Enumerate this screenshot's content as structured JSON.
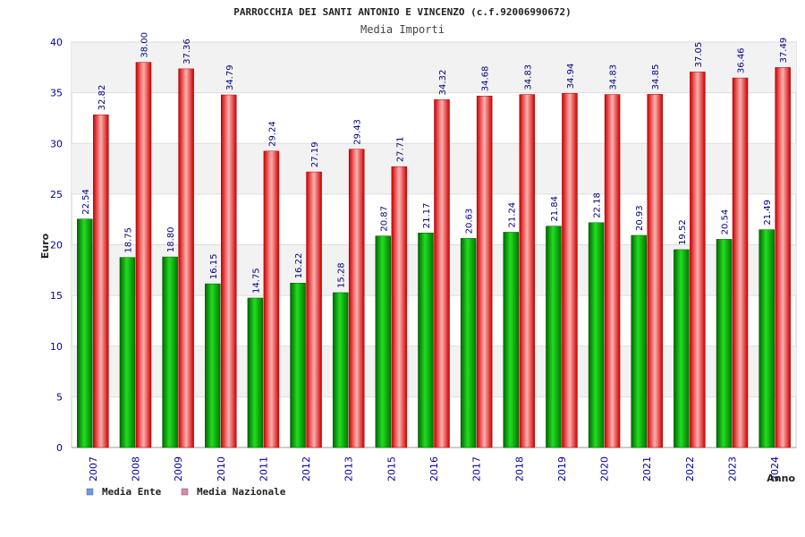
{
  "chart_data": {
    "type": "bar",
    "title": "PARROCCHIA DEI SANTI ANTONIO E VINCENZO (c.f.92006990672)",
    "subtitle": "Media Importi",
    "xlabel": "Anno",
    "ylabel": "Euro",
    "ylim": [
      0,
      40
    ],
    "yticks": [
      0,
      5,
      10,
      15,
      20,
      25,
      30,
      35,
      40
    ],
    "categories": [
      "2007",
      "2008",
      "2009",
      "2010",
      "2011",
      "2012",
      "2013",
      "2015",
      "2016",
      "2017",
      "2018",
      "2019",
      "2020",
      "2021",
      "2022",
      "2023",
      "2024"
    ],
    "series": [
      {
        "name": "Media Ente",
        "values": [
          22.54,
          18.75,
          18.8,
          16.15,
          14.75,
          16.22,
          15.28,
          20.87,
          21.17,
          20.63,
          21.24,
          21.84,
          22.18,
          20.93,
          19.52,
          20.54,
          21.49
        ],
        "labels": [
          "22.54",
          "18.75",
          "18.80",
          "16.15",
          "14.75",
          "16.22",
          "15.28",
          "20.87",
          "21.17",
          "20.63",
          "21.24",
          "21.84",
          "22.18",
          "20.93",
          "19.52",
          "20.54",
          "21.49"
        ],
        "color": "#00aa00",
        "legend_color": "#6699ee"
      },
      {
        "name": "Media Nazionale",
        "values": [
          32.82,
          38.0,
          37.36,
          34.79,
          29.24,
          27.19,
          29.43,
          27.71,
          34.32,
          34.68,
          34.83,
          34.94,
          34.83,
          34.85,
          37.05,
          36.46,
          37.49
        ],
        "labels": [
          "32.82",
          "38.00",
          "37.36",
          "34.79",
          "29.24",
          "27.19",
          "29.43",
          "27.71",
          "34.32",
          "34.68",
          "34.83",
          "34.94",
          "34.83",
          "34.85",
          "37.05",
          "36.46",
          "37.49"
        ],
        "color": "#ee1111",
        "legend_color": "#dd88aa"
      }
    ],
    "legend": "bottom-left",
    "grid": true
  }
}
